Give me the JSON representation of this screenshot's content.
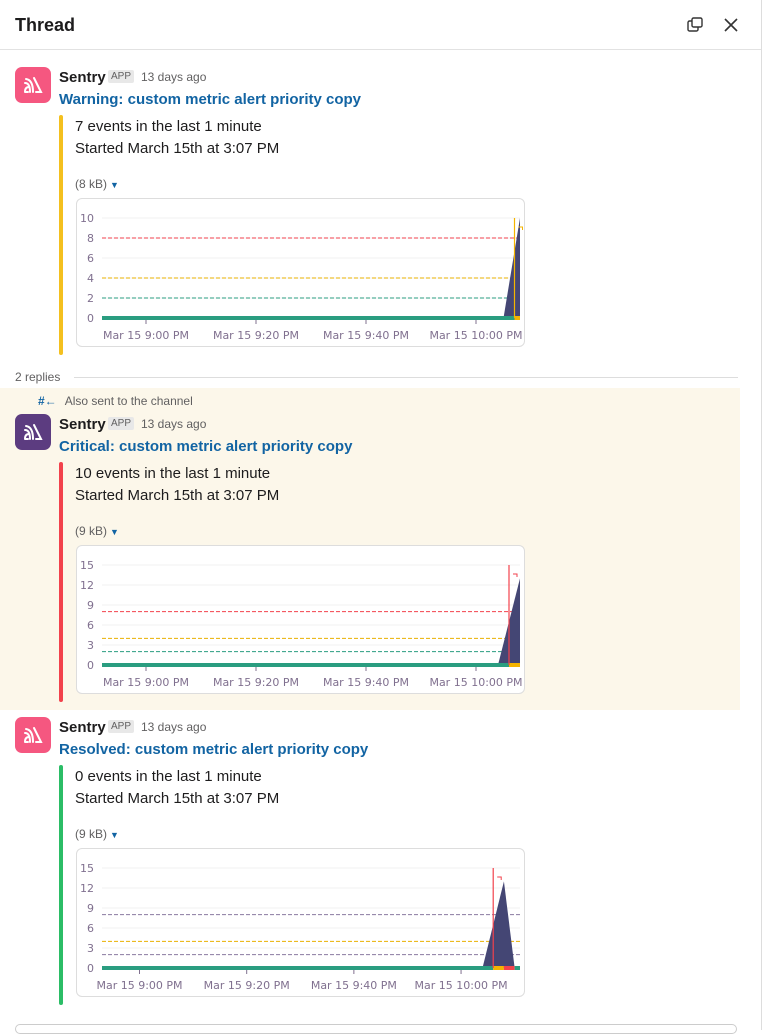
{
  "header": {
    "title": "Thread",
    "icons": [
      "open-in-window-icon",
      "close-icon"
    ]
  },
  "replies_label": "2 replies",
  "also_sent": {
    "icon": "channel-arrow-icon",
    "label": "Also sent to the channel"
  },
  "messages": [
    {
      "sender": "Sentry",
      "badge": "APP",
      "time": "13 days ago",
      "title": "Warning: custom metric alert priority copy",
      "line1": "7 events in the last 1 minute",
      "line2": "Started March 15th at 3:07 PM",
      "size": "(8 kB)",
      "bar_color": "#f4c01f",
      "avatar_color": "#f55780"
    },
    {
      "sender": "Sentry",
      "badge": "APP",
      "time": "13 days ago",
      "title": "Critical: custom metric alert priority copy",
      "line1": "10 events in the last 1 minute",
      "line2": "Started March 15th at 3:07 PM",
      "size": "(9 kB)",
      "bar_color": "#f2424c",
      "avatar_color": "#5c3c80"
    },
    {
      "sender": "Sentry",
      "badge": "APP",
      "time": "13 days ago",
      "title": "Resolved: custom metric alert priority copy",
      "line1": "0 events in the last 1 minute",
      "line2": "Started March 15th at 3:07 PM",
      "size": "(9 kB)",
      "bar_color": "#2bbd66",
      "avatar_color": "#f55780"
    }
  ],
  "chart_data": [
    {
      "type": "area",
      "xlim": [
        "20:52",
        "22:08"
      ],
      "ylim": [
        0,
        10
      ],
      "yticks": [
        "0",
        "2",
        "4",
        "6",
        "8",
        "10"
      ],
      "xticks": [
        {
          "t": "21:00",
          "label": "Mar 15 9:00 PM"
        },
        {
          "t": "21:20",
          "label": "Mar 15 9:20 PM"
        },
        {
          "t": "21:40",
          "label": "Mar 15 9:40 PM"
        },
        {
          "t": "22:00",
          "label": "Mar 15 10:00 PM"
        }
      ],
      "thresholds": [
        {
          "value": 8,
          "color": "#f2424c"
        },
        {
          "value": 4,
          "color": "#e9b000"
        },
        {
          "value": 2,
          "color": "#2a9d80"
        }
      ],
      "series": {
        "x": [
          "22:05",
          "22:08"
        ],
        "y": [
          0,
          10
        ],
        "color": "#444674"
      },
      "marker": {
        "t": "22:07",
        "color": "#f4b400"
      },
      "status_band": [
        {
          "from": "20:52",
          "to": "22:07",
          "color": "#2a9d80"
        },
        {
          "from": "22:07",
          "to": "22:08",
          "color": "#f4b400"
        }
      ]
    },
    {
      "type": "area",
      "xlim": [
        "20:52",
        "22:08"
      ],
      "ylim": [
        0,
        15
      ],
      "yticks": [
        "0",
        "3",
        "6",
        "9",
        "12",
        "15"
      ],
      "xticks": [
        {
          "t": "21:00",
          "label": "Mar 15 9:00 PM"
        },
        {
          "t": "21:20",
          "label": "Mar 15 9:20 PM"
        },
        {
          "t": "21:40",
          "label": "Mar 15 9:40 PM"
        },
        {
          "t": "22:00",
          "label": "Mar 15 10:00 PM"
        }
      ],
      "thresholds": [
        {
          "value": 8,
          "color": "#f2424c"
        },
        {
          "value": 4,
          "color": "#e9b000"
        },
        {
          "value": 2,
          "color": "#2a9d80"
        }
      ],
      "series": {
        "x": [
          "22:04",
          "22:08"
        ],
        "y": [
          0,
          13
        ],
        "color": "#444674"
      },
      "marker": {
        "t": "22:06",
        "color": "#f2424c"
      },
      "status_band": [
        {
          "from": "20:52",
          "to": "22:06",
          "color": "#2a9d80"
        },
        {
          "from": "22:06",
          "to": "22:08",
          "color": "#f4b400"
        }
      ]
    },
    {
      "type": "area",
      "xlim": [
        "20:53",
        "22:11"
      ],
      "ylim": [
        0,
        15
      ],
      "yticks": [
        "0",
        "3",
        "6",
        "9",
        "12",
        "15"
      ],
      "xticks": [
        {
          "t": "21:00",
          "label": "Mar 15 9:00 PM"
        },
        {
          "t": "21:20",
          "label": "Mar 15 9:20 PM"
        },
        {
          "t": "21:40",
          "label": "Mar 15 9:40 PM"
        },
        {
          "t": "22:00",
          "label": "Mar 15 10:00 PM"
        }
      ],
      "thresholds": [
        {
          "value": 8,
          "color": "#8a7aa0"
        },
        {
          "value": 4,
          "color": "#e9b000"
        },
        {
          "value": 2,
          "color": "#8a7aa0"
        }
      ],
      "series": {
        "x": [
          "22:04",
          "22:08",
          "22:10"
        ],
        "y": [
          0,
          13,
          0
        ],
        "color": "#444674"
      },
      "marker": {
        "t": "22:06",
        "color": "#f2424c"
      },
      "status_band": [
        {
          "from": "20:53",
          "to": "22:06",
          "color": "#2a9d80"
        },
        {
          "from": "22:06",
          "to": "22:08",
          "color": "#f4b400"
        },
        {
          "from": "22:08",
          "to": "22:10",
          "color": "#f2424c"
        },
        {
          "from": "22:10",
          "to": "22:11",
          "color": "#2a9d80"
        }
      ]
    }
  ]
}
